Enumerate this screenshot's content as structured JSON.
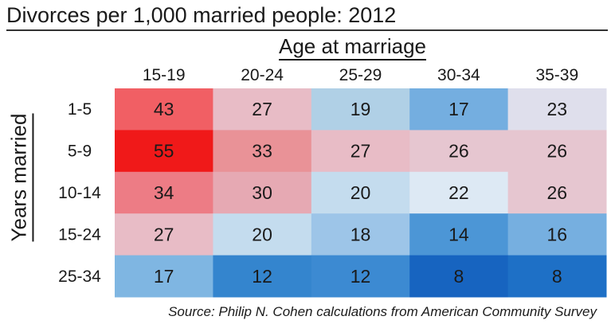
{
  "title": "Divorces per 1,000 married people: 2012",
  "source": "Source: Philip N. Cohen calculations from American Community Survey",
  "chart_data": {
    "type": "heatmap",
    "title": "Divorces per 1,000 married people: 2012",
    "xlabel": "Age at marriage",
    "ylabel": "Years married",
    "x_categories": [
      "15-19",
      "20-24",
      "25-29",
      "30-34",
      "35-39"
    ],
    "y_categories": [
      "1-5",
      "5-9",
      "10-14",
      "15-24",
      "25-34"
    ],
    "values": [
      [
        43,
        27,
        19,
        17,
        23
      ],
      [
        55,
        33,
        27,
        26,
        26
      ],
      [
        34,
        30,
        20,
        22,
        26
      ],
      [
        27,
        20,
        18,
        14,
        16
      ],
      [
        17,
        12,
        12,
        8,
        8
      ]
    ],
    "colors": [
      [
        "#f15f64",
        "#e8bcc6",
        "#b0d0e6",
        "#74aee0",
        "#dfdfec"
      ],
      [
        "#f01919",
        "#e99297",
        "#e8bcc6",
        "#e6c6d0",
        "#e6c6d0"
      ],
      [
        "#ed7c85",
        "#e6a9b3",
        "#c4dcee",
        "#dde9f4",
        "#e6c6d0"
      ],
      [
        "#e8bcc6",
        "#c4dcee",
        "#9dc5e8",
        "#4c96d6",
        "#76afe0"
      ],
      [
        "#7fb6e2",
        "#3485ce",
        "#3c8ad2",
        "#1764c0",
        "#1e70c6"
      ]
    ]
  }
}
